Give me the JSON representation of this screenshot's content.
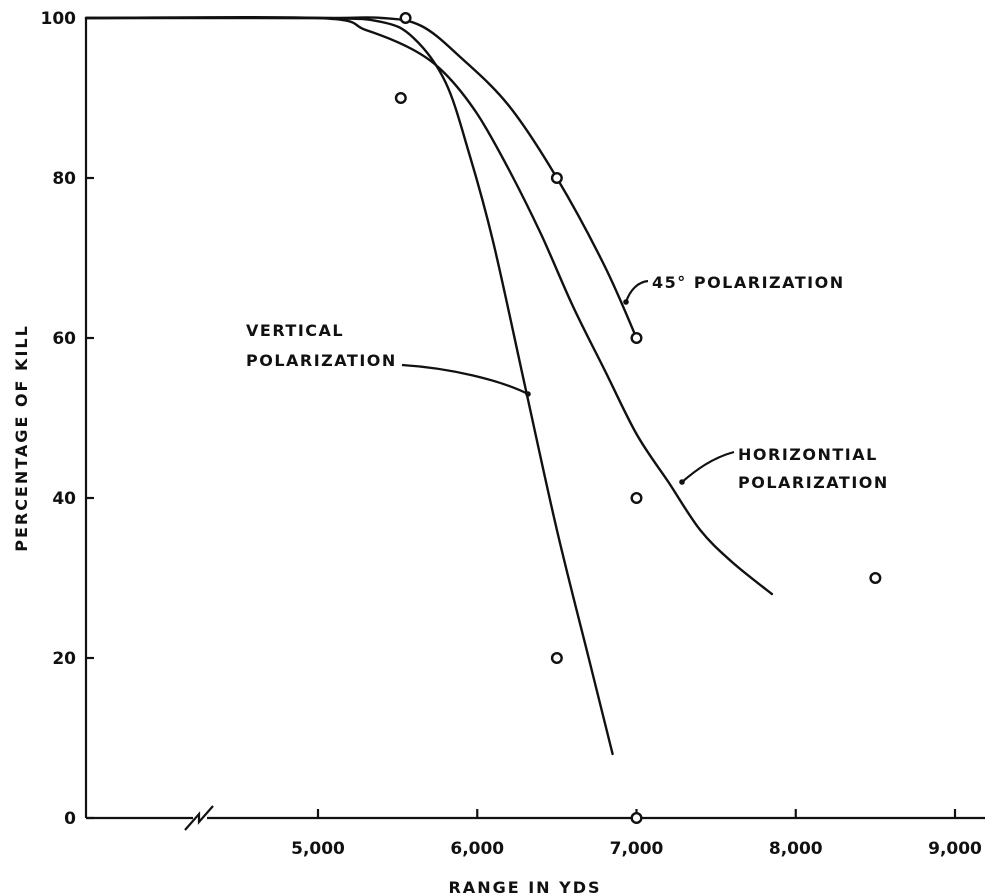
{
  "chart_data": {
    "type": "scatter",
    "title": "",
    "xlabel": "RANGE IN YDS",
    "ylabel": "PERCENTAGE OF KILL",
    "xlim": [
      4000,
      9200
    ],
    "ylim": [
      0,
      100
    ],
    "x_axis_break": "between 4000 and 5000",
    "x_ticks": [
      5000,
      6000,
      7000,
      8000,
      9000
    ],
    "x_tick_labels": [
      "5,000",
      "6,000",
      "7,000",
      "8,000",
      "9,000"
    ],
    "y_ticks": [
      0,
      20,
      40,
      60,
      80,
      100
    ],
    "y_tick_labels": [
      "0",
      "20",
      "40",
      "60",
      "80",
      "100"
    ],
    "grid": false,
    "legend": "none",
    "points": [
      {
        "x": 5550,
        "y": 100
      },
      {
        "x": 5520,
        "y": 90
      },
      {
        "x": 6500,
        "y": 80
      },
      {
        "x": 7000,
        "y": 60
      },
      {
        "x": 7000,
        "y": 40
      },
      {
        "x": 6500,
        "y": 20
      },
      {
        "x": 7000,
        "y": 0
      },
      {
        "x": 8500,
        "y": 30
      }
    ],
    "series": [
      {
        "name": "45° POLARIZATION",
        "label_lines": [
          "45° POLARIZATION"
        ],
        "x": [
          4000,
          5000,
          5400,
          5650,
          5900,
          6200,
          6500,
          6800,
          7000
        ],
        "y": [
          100,
          100,
          100,
          99,
          95,
          89,
          80,
          69,
          60
        ]
      },
      {
        "name": "VERTICAL POLARIZATION",
        "label_lines": [
          "VERTICAL",
          "POLARIZATION"
        ],
        "x": [
          4000,
          5000,
          5400,
          5600,
          5800,
          5950,
          6100,
          6300,
          6500,
          6700,
          6850
        ],
        "y": [
          100,
          100,
          99.5,
          97.5,
          92,
          83,
          72,
          54,
          36,
          20,
          8
        ]
      },
      {
        "name": "HORIZONTIAL POLARIZATION",
        "label_lines": [
          "HORIZONTIAL",
          "POLARIZATION"
        ],
        "x": [
          4000,
          5000,
          5300,
          5600,
          5800,
          6000,
          6200,
          6400,
          6600,
          6800,
          7000,
          7200,
          7400,
          7600,
          7850
        ],
        "y": [
          100,
          100,
          98.5,
          96,
          93,
          88,
          81,
          73,
          64,
          56,
          48,
          42,
          36,
          32,
          28
        ]
      }
    ]
  }
}
